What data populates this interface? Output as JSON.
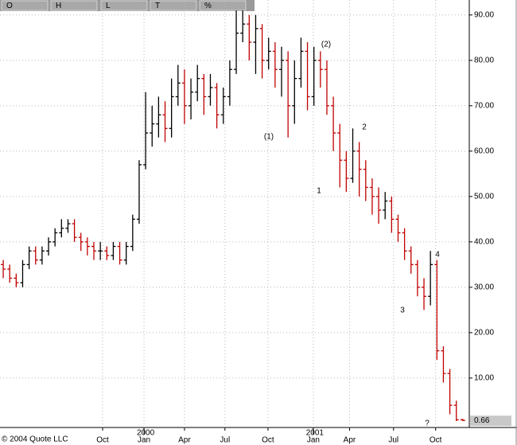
{
  "chart_data": {
    "type": "ohlc",
    "toolbar": [
      "O",
      "H",
      "L",
      "T",
      "%"
    ],
    "copyright": "© 2004 Quote LLC",
    "last_price": {
      "value": 0.66,
      "label": "0.66"
    },
    "up_color": "#000000",
    "down_color": "#c00000",
    "grid": true,
    "xlim": [
      -1,
      144
    ],
    "ylim": [
      -0.9,
      93.3
    ],
    "yticks": [
      {
        "value": 10,
        "label": "10.00"
      },
      {
        "value": 20,
        "label": "20.00"
      },
      {
        "value": 30,
        "label": "30.00"
      },
      {
        "value": 40,
        "label": "40.00"
      },
      {
        "value": 50,
        "label": "50.00"
      },
      {
        "value": 60,
        "label": "60.00"
      },
      {
        "value": 70,
        "label": "70.00"
      },
      {
        "value": 80,
        "label": "80.00"
      },
      {
        "value": 90,
        "label": "90.00"
      }
    ],
    "xticks": [
      {
        "value": 30.7,
        "label": "Oct"
      },
      {
        "value": 43.5,
        "label": "Jan"
      },
      {
        "value": 56,
        "label": "Apr"
      },
      {
        "value": 68.5,
        "label": "Jul"
      },
      {
        "value": 81.8,
        "label": "Oct"
      },
      {
        "value": 95.8,
        "label": "Jan"
      },
      {
        "value": 107,
        "label": "Apr"
      },
      {
        "value": 120.6,
        "label": "Jul"
      },
      {
        "value": 133.6,
        "label": "Oct"
      }
    ],
    "year_labels": [
      {
        "value": 43.5,
        "label": "2000"
      },
      {
        "value": 95.8,
        "label": "2001"
      }
    ],
    "annotations": [
      "(1)",
      "(2)",
      "1",
      "2",
      "3",
      "4",
      "?"
    ],
    "x": [
      0,
      2,
      4,
      6,
      8,
      10,
      12,
      14,
      16,
      18,
      20,
      22,
      24,
      26,
      28,
      30,
      32,
      34,
      36,
      38,
      40,
      42,
      44,
      46,
      48,
      50,
      52,
      54,
      56,
      58,
      60,
      62,
      64,
      66,
      68,
      70,
      72,
      74,
      76,
      78,
      80,
      82,
      84,
      86,
      88,
      90,
      92,
      94,
      96,
      98,
      100,
      102,
      104,
      106,
      108,
      110,
      112,
      114,
      116,
      118,
      120,
      122,
      124,
      126,
      128,
      130,
      132,
      134,
      136,
      138,
      140,
      142
    ],
    "open": [
      35,
      34,
      32,
      31,
      35,
      38,
      36,
      38,
      40,
      42,
      43,
      44,
      41,
      40,
      39,
      38,
      38,
      37,
      39,
      36,
      39,
      45,
      57,
      64,
      66,
      68,
      65,
      72,
      75,
      70,
      73,
      76,
      72,
      74,
      68,
      72,
      78,
      86,
      88,
      84,
      87,
      80,
      82,
      78,
      80,
      70,
      76,
      82,
      72,
      80,
      78,
      70,
      64,
      58,
      54,
      60,
      56,
      52,
      50,
      47,
      49,
      45,
      42,
      38,
      35,
      30,
      28,
      35,
      16,
      11,
      4,
      0.8
    ],
    "high": [
      36,
      35,
      33,
      36,
      39,
      39,
      39,
      41,
      43,
      45,
      45,
      45,
      42,
      41,
      40,
      40,
      39,
      40,
      40,
      40,
      46,
      58,
      73,
      70,
      72,
      71,
      76,
      79,
      78,
      76,
      79,
      77,
      77,
      75,
      74,
      80,
      91,
      91,
      90,
      90,
      88,
      85,
      84,
      83,
      82,
      80,
      85,
      84,
      83,
      82,
      80,
      72,
      66,
      60,
      65,
      62,
      58,
      54,
      52,
      51,
      50,
      46,
      43,
      39,
      36,
      32,
      38,
      36,
      17,
      12,
      5,
      1
    ],
    "low": [
      32,
      31,
      30,
      30,
      34,
      35,
      35,
      37,
      39,
      41,
      42,
      40,
      38,
      37,
      36,
      36,
      36,
      36,
      35,
      35,
      38,
      44,
      56,
      61,
      63,
      62,
      63,
      70,
      66,
      67,
      71,
      68,
      70,
      65,
      66,
      70,
      77,
      84,
      80,
      77,
      76,
      78,
      74,
      72,
      63,
      66,
      74,
      69,
      70,
      74,
      68,
      60,
      52,
      51,
      53,
      50,
      49,
      46,
      44,
      45,
      42,
      40,
      36,
      33,
      28,
      25,
      26,
      14,
      9,
      2,
      0.5,
      0.5
    ],
    "close": [
      34,
      32,
      31,
      35,
      38,
      36,
      38,
      40,
      42,
      43,
      44,
      41,
      40,
      39,
      38,
      38,
      37,
      39,
      36,
      39,
      45,
      57,
      64,
      66,
      68,
      65,
      72,
      75,
      70,
      73,
      76,
      72,
      74,
      68,
      72,
      78,
      86,
      88,
      84,
      87,
      80,
      82,
      78,
      80,
      70,
      76,
      82,
      72,
      80,
      78,
      70,
      64,
      58,
      54,
      60,
      56,
      52,
      50,
      47,
      49,
      45,
      42,
      38,
      35,
      30,
      28,
      35,
      16,
      11,
      4,
      0.8,
      0.66
    ]
  }
}
